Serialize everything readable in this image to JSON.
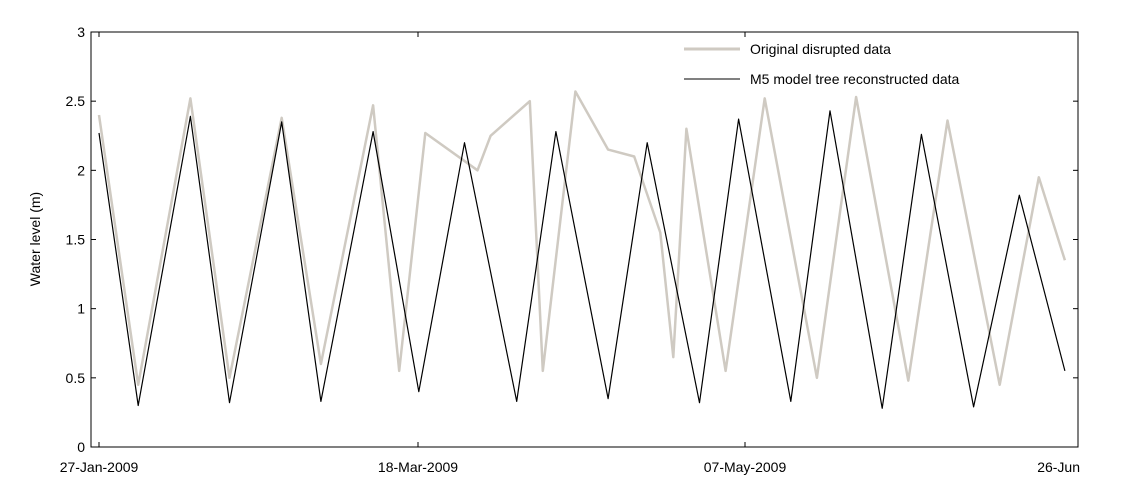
{
  "chart_data": {
    "type": "line",
    "title": "",
    "xlabel": "",
    "ylabel": "Water level (m)",
    "x_ticks": [
      "27-Jan-2009",
      "18-Mar-2009",
      "07-May-2009",
      "26-Jun"
    ],
    "xlim": [
      "2009-01-27",
      "2009-06-26"
    ],
    "ylim": [
      0,
      3
    ],
    "y_ticks": [
      "0",
      "0.5",
      "1",
      "1.5",
      "2",
      "2.5",
      "3"
    ],
    "grid": false,
    "legend_position": "top-right",
    "series": [
      {
        "name": "Original disrupted data",
        "color": "#cfcac2",
        "x": [
          "2009-01-27",
          "2009-02-02",
          "2009-02-10",
          "2009-02-16",
          "2009-02-24",
          "2009-03-02",
          "2009-03-10",
          "2009-03-14",
          "2009-03-18",
          "2009-03-26",
          "2009-03-28",
          "2009-04-03",
          "2009-04-05",
          "2009-04-10",
          "2009-04-15",
          "2009-04-19",
          "2009-04-23",
          "2009-04-25",
          "2009-04-27",
          "2009-05-03",
          "2009-05-09",
          "2009-05-17",
          "2009-05-23",
          "2009-05-31",
          "2009-06-06",
          "2009-06-14",
          "2009-06-20",
          "2009-06-24"
        ],
        "values": [
          2.4,
          0.45,
          2.52,
          0.5,
          2.38,
          0.6,
          2.47,
          0.55,
          2.27,
          2.0,
          2.25,
          2.5,
          0.55,
          2.57,
          2.15,
          2.1,
          1.55,
          0.65,
          2.3,
          0.55,
          2.52,
          0.5,
          2.53,
          0.48,
          2.36,
          0.45,
          1.95,
          1.35
        ]
      },
      {
        "name": "M5 model tree reconstructed data",
        "color": "#000000",
        "x": [
          "2009-01-27",
          "2009-02-02",
          "2009-02-10",
          "2009-02-16",
          "2009-02-24",
          "2009-03-02",
          "2009-03-10",
          "2009-03-17",
          "2009-03-24",
          "2009-04-01",
          "2009-04-07",
          "2009-04-15",
          "2009-04-21",
          "2009-04-29",
          "2009-05-05",
          "2009-05-13",
          "2009-05-19",
          "2009-05-27",
          "2009-06-02",
          "2009-06-10",
          "2009-06-17",
          "2009-06-24"
        ],
        "values": [
          2.27,
          0.3,
          2.39,
          0.32,
          2.35,
          0.33,
          2.28,
          0.4,
          2.2,
          0.33,
          2.28,
          0.35,
          2.2,
          0.32,
          2.37,
          0.33,
          2.43,
          0.28,
          2.26,
          0.29,
          1.82,
          0.55
        ]
      }
    ]
  }
}
